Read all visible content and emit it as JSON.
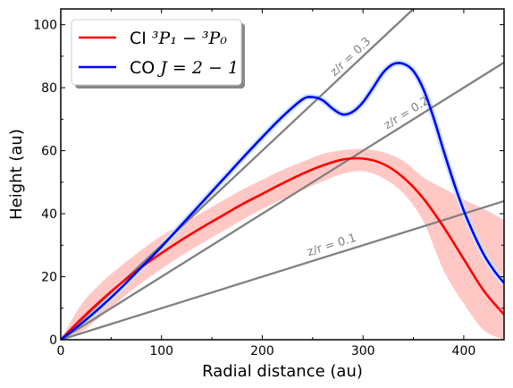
{
  "chart_data": {
    "type": "line",
    "xlabel": "Radial distance (au)",
    "ylabel": "Height (au)",
    "xlim": [
      0,
      440
    ],
    "ylim": [
      0,
      105
    ],
    "xticks": [
      0,
      100,
      200,
      300,
      400
    ],
    "yticks": [
      0,
      20,
      40,
      60,
      80,
      100
    ],
    "grid": false,
    "legend_position": "top-left",
    "series": [
      {
        "name": "CI ³P₁ − ³P₀",
        "legend_main": "CI ",
        "legend_math": "³P₁ − ³P₀",
        "color": "#ff0000",
        "band_color": "#ffc8c4",
        "x": [
          0,
          20,
          40,
          60,
          80,
          100,
          120,
          140,
          160,
          180,
          200,
          220,
          240,
          260,
          280,
          300,
          320,
          340,
          360,
          380,
          400,
          420,
          440
        ],
        "y": [
          0,
          6.5,
          12.5,
          18,
          23,
          27.5,
          31.7,
          35.6,
          39.3,
          43,
          46.3,
          49.6,
          52.7,
          55.3,
          57.2,
          57.5,
          55.8,
          51.5,
          44.8,
          35.8,
          25.6,
          15.5,
          8
        ],
        "y_lower": [
          0,
          2.5,
          7.5,
          13,
          18,
          22.5,
          26.7,
          30.6,
          34.3,
          38,
          41.5,
          44.6,
          47.5,
          50.3,
          52.7,
          53.5,
          51.3,
          46.5,
          37.5,
          22,
          11.5,
          3,
          0
        ],
        "y_upper": [
          0,
          11,
          18,
          23.5,
          28.5,
          33,
          36.7,
          40.3,
          44,
          47.6,
          50.8,
          53.9,
          56.5,
          59,
          60.2,
          60.5,
          59.5,
          56.8,
          51.5,
          48,
          44.5,
          41.5,
          38
        ]
      },
      {
        "name": "CO J = 2 − 1",
        "legend_main": "CO ",
        "legend_math": "J = 2 − 1",
        "color": "#0000ff",
        "band_color": "#cfe5ff",
        "x": [
          0,
          20,
          40,
          60,
          80,
          100,
          120,
          140,
          160,
          180,
          200,
          220,
          240,
          250,
          260,
          270,
          280,
          290,
          300,
          310,
          320,
          330,
          340,
          350,
          360,
          370,
          380,
          390,
          400,
          410,
          420,
          430,
          440
        ],
        "y": [
          0,
          5,
          10.5,
          16.5,
          23,
          29.5,
          36.5,
          43.5,
          50.5,
          57.5,
          64.3,
          70.8,
          76.3,
          77,
          76,
          73.3,
          71.5,
          72.4,
          75.4,
          80,
          84.8,
          87.5,
          87.6,
          85.3,
          79.5,
          70.5,
          60,
          50,
          41,
          33.5,
          27,
          22,
          18
        ]
      }
    ],
    "reference_lines": [
      {
        "label": "z/r = 0.1",
        "slope": 0.1,
        "color": "#808080"
      },
      {
        "label": "z/r = 0.2",
        "slope": 0.2,
        "color": "#808080"
      },
      {
        "label": "z/r = 0.3",
        "slope": 0.3,
        "color": "#808080"
      }
    ]
  }
}
